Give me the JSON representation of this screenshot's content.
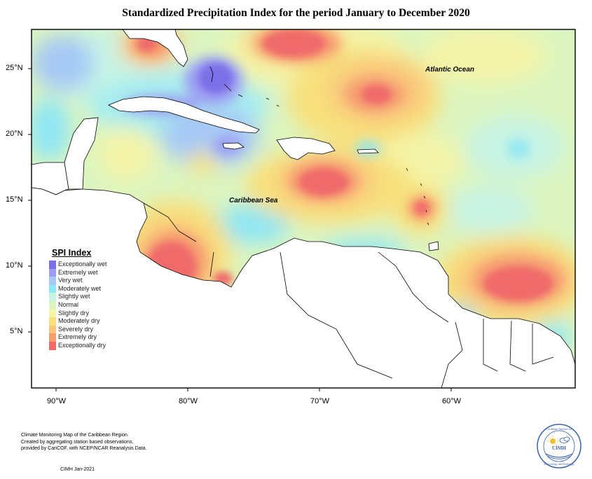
{
  "title": "Standardized Precipitation Index for the period January to December 2020",
  "map": {
    "region": "Caribbean Region",
    "ocean_labels": [
      "Atlantic Ocean",
      "Caribbean Sea"
    ],
    "lat_ticks": [
      "25°N",
      "20°N",
      "15°N",
      "10°N",
      "5°N"
    ],
    "lon_ticks": [
      "90°W",
      "80°W",
      "70°W",
      "60°W"
    ]
  },
  "legend": {
    "title": "SPI Index",
    "items": [
      {
        "label": "Exceptionally wet",
        "color": "#7b6fe8"
      },
      {
        "label": "Extremely wet",
        "color": "#9c9ef2"
      },
      {
        "label": "Very wet",
        "color": "#a6c9f5"
      },
      {
        "label": "Moderately wet",
        "color": "#8fe6f4"
      },
      {
        "label": "Slightly wet",
        "color": "#c8f4e4"
      },
      {
        "label": "Normal",
        "color": "#dcf5c0"
      },
      {
        "label": "Slightly dry",
        "color": "#f4f4a8"
      },
      {
        "label": "Moderately dry",
        "color": "#f8e07c"
      },
      {
        "label": "Severely dry",
        "color": "#f9c47c"
      },
      {
        "label": "Extremely dry",
        "color": "#f59c70"
      },
      {
        "label": "Exceptionally dry",
        "color": "#f06a6a"
      }
    ]
  },
  "footnote": {
    "lines": [
      "Climate Monitoring Map of the Caribbean Region.",
      "Created by aggregating station based observations,",
      "provided by CariCOF, with NCEP/NCAR Reanalysis Data."
    ],
    "credit": "CIMH Jan-2021"
  },
  "logo": {
    "abbr": "CIMH",
    "ring_text_top": "Caribbean Institute for",
    "ring_text_bottom": "Meteorology and Hydrology",
    "icons": [
      "sun-icon",
      "cloud-icon"
    ]
  }
}
